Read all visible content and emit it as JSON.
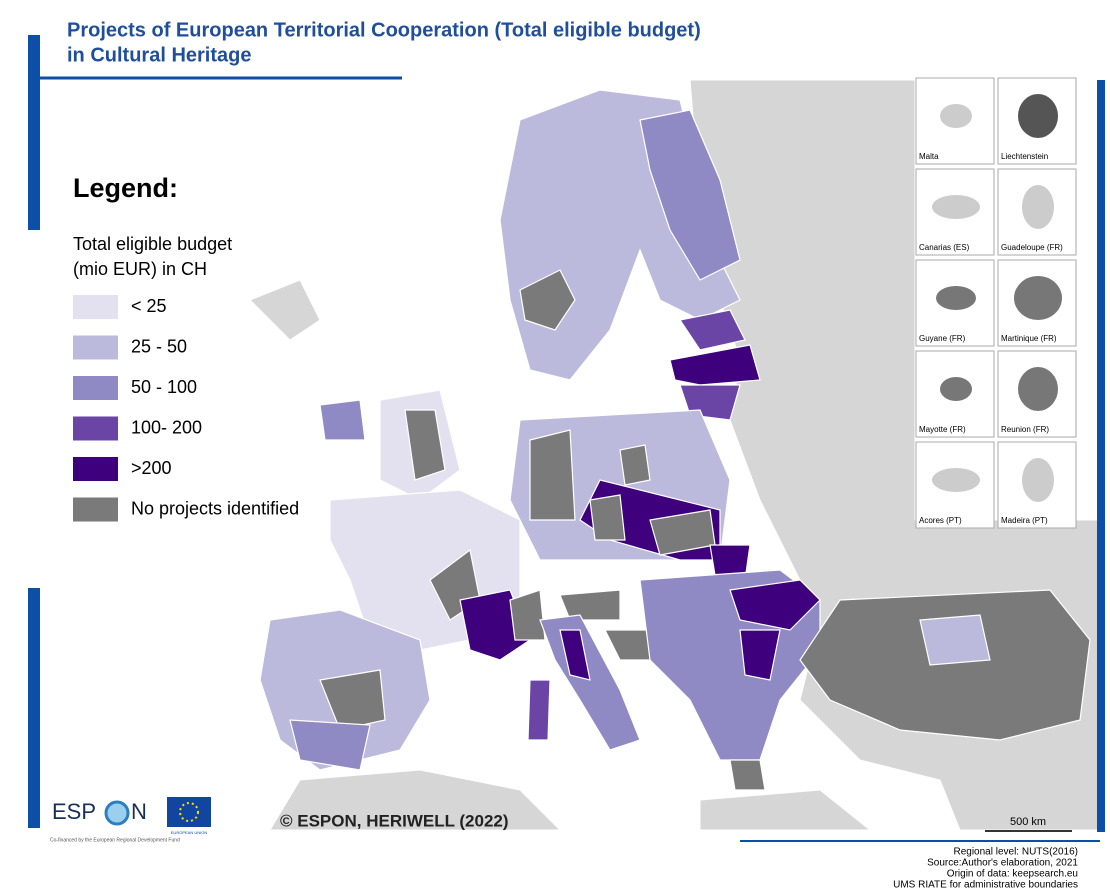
{
  "header": {
    "title_lines": [
      "Projects of European Territorial Cooperation (Total eligible budget)",
      "in Cultural Heritage"
    ]
  },
  "legend": {
    "heading": "Legend:",
    "subtitle_lines": [
      "Total eligible budget",
      "(mio EUR) in CH"
    ],
    "items": [
      {
        "label": "< 25",
        "color": "#e3e1ef"
      },
      {
        "label": "25 - 50",
        "color": "#bcbadc"
      },
      {
        "label": "50 - 100",
        "color": "#8f89c4"
      },
      {
        "label": "100- 200",
        "color": "#6a45a6"
      },
      {
        "label": ">200",
        "color": "#3f007d"
      },
      {
        "label": "No projects identified",
        "color": "#7a7a7a"
      }
    ]
  },
  "insets": [
    "Malta",
    "Liechtenstein",
    "Canarias (ES)",
    "Guadeloupe (FR)",
    "Guyane (FR)",
    "Martinique (FR)",
    "Mayotte (FR)",
    "Reunion (FR)",
    "Acores (PT)",
    "Madeira (PT)"
  ],
  "copyright": "© ESPON, HERIWELL (2022)",
  "scale_bar": "500 km",
  "source_lines": [
    "Regional level: NUTS(2016)",
    "Source:Author's elaboration, 2021",
    "Origin of data: keepsearch.eu",
    "UMS RIATE for administrative boundaries"
  ],
  "logos": {
    "espon_left": "ESP",
    "espon_right": "N",
    "cofinanced": "Co-financed by the European Regional Development Fund",
    "eu": "EUROPEAN UNION"
  }
}
